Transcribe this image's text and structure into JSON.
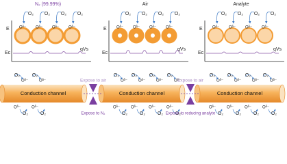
{
  "panels": [
    {
      "title": "N₂ (99.99%)",
      "energy_label": "E",
      "conduction_label": "Ec",
      "barrier_label": "qVs"
    },
    {
      "title": "Air",
      "energy_label": "E",
      "conduction_label": "Ec",
      "barrier_label": "qVs"
    },
    {
      "title": "Analyte",
      "energy_label": "E",
      "conduction_label": "Ec",
      "barrier_label": "qVs"
    }
  ],
  "molecule_label": "O₂",
  "ion_label": "Oᵟ⁻",
  "channels": [
    "Conduction channel",
    "Conduction channel",
    "Conduction channel"
  ],
  "steps": [
    {
      "top": "Expose to air",
      "bottom": "Expose to N₂"
    },
    {
      "top": "Expose to air",
      "bottom": "Expose to reducing analyte"
    }
  ]
}
